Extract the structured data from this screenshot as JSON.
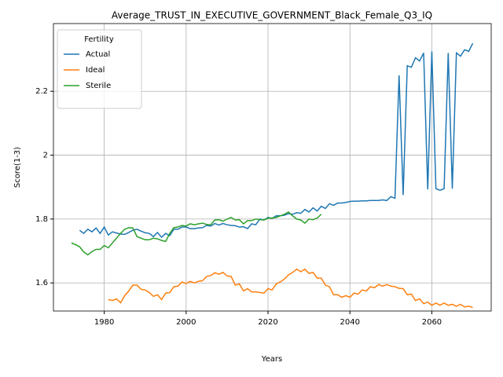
{
  "chart_data": {
    "type": "line",
    "title": "Average_TRUST_IN_EXECUTIVE_GOVERNMENT_Black_Female_Q3_IQ",
    "xlabel": "Years",
    "ylabel": "Score(1-3)",
    "legend_title": "Fertility",
    "legend_loc": "upper left",
    "grid": true,
    "x": [
      1972,
      1973,
      1974,
      1975,
      1976,
      1977,
      1978,
      1979,
      1980,
      1981,
      1982,
      1983,
      1984,
      1985,
      1986,
      1987,
      1988,
      1989,
      1990,
      1991,
      1992,
      1993,
      1994,
      1995,
      1996,
      1997,
      1998,
      1999,
      2000,
      2001,
      2002,
      2003,
      2004,
      2005,
      2006,
      2007,
      2008,
      2009,
      2010,
      2011,
      2012,
      2013,
      2014,
      2015,
      2016,
      2017,
      2018,
      2019,
      2020,
      2021,
      2022,
      2023,
      2024,
      2025,
      2026,
      2027,
      2028,
      2029,
      2030,
      2031,
      2032,
      2033,
      2034,
      2035,
      2036,
      2037,
      2038,
      2039,
      2040,
      2041,
      2042,
      2043,
      2044,
      2045,
      2046,
      2047,
      2048,
      2049,
      2050,
      2051,
      2052,
      2053,
      2054,
      2055,
      2056,
      2057,
      2058,
      2059,
      2060,
      2061,
      2062,
      2063,
      2064,
      2065,
      2066,
      2067,
      2068,
      2069,
      2070
    ],
    "series": [
      {
        "name": "Actual",
        "color": "#1f77b4",
        "values": [
          null,
          null,
          1.765,
          1.755,
          1.768,
          1.76,
          1.772,
          1.755,
          1.775,
          1.75,
          1.76,
          1.756,
          1.753,
          1.752,
          1.758,
          1.765,
          1.768,
          1.762,
          1.757,
          1.755,
          1.745,
          1.758,
          1.743,
          1.755,
          1.748,
          1.768,
          1.768,
          1.775,
          1.775,
          1.77,
          1.77,
          1.772,
          1.773,
          1.78,
          1.778,
          1.786,
          1.781,
          1.786,
          1.782,
          1.78,
          1.779,
          1.775,
          1.776,
          1.77,
          1.785,
          1.782,
          1.8,
          1.797,
          1.805,
          1.802,
          1.81,
          1.81,
          1.812,
          1.817,
          1.815,
          1.82,
          1.818,
          1.83,
          1.822,
          1.835,
          1.825,
          1.84,
          1.833,
          1.848,
          1.843,
          1.85,
          1.85,
          1.852,
          1.855,
          1.856,
          1.856,
          1.857,
          1.857,
          1.858,
          1.858,
          1.858,
          1.86,
          1.858,
          1.87,
          1.865,
          2.25,
          1.875,
          2.28,
          2.275,
          2.305,
          2.295,
          2.32,
          1.893,
          2.325,
          1.895,
          1.89,
          1.895,
          2.32,
          1.895,
          2.32,
          2.31,
          2.33,
          2.325,
          2.35
        ]
      },
      {
        "name": "Ideal",
        "color": "#ff7f0e",
        "values": [
          null,
          null,
          null,
          null,
          null,
          null,
          null,
          null,
          null,
          1.548,
          1.545,
          1.55,
          1.538,
          1.56,
          1.575,
          1.593,
          1.593,
          1.58,
          1.578,
          1.57,
          1.558,
          1.563,
          1.548,
          1.568,
          1.57,
          1.588,
          1.59,
          1.603,
          1.598,
          1.605,
          1.6,
          1.605,
          1.607,
          1.62,
          1.623,
          1.632,
          1.627,
          1.633,
          1.622,
          1.62,
          1.593,
          1.597,
          1.575,
          1.582,
          1.572,
          1.572,
          1.57,
          1.568,
          1.582,
          1.578,
          1.597,
          1.603,
          1.612,
          1.625,
          1.633,
          1.643,
          1.635,
          1.643,
          1.63,
          1.633,
          1.615,
          1.615,
          1.593,
          1.588,
          1.563,
          1.563,
          1.555,
          1.56,
          1.555,
          1.568,
          1.565,
          1.578,
          1.575,
          1.588,
          1.585,
          1.595,
          1.59,
          1.595,
          1.59,
          1.588,
          1.583,
          1.582,
          1.563,
          1.565,
          1.545,
          1.55,
          1.535,
          1.54,
          1.53,
          1.537,
          1.53,
          1.537,
          1.53,
          1.533,
          1.527,
          1.533,
          1.525,
          1.527,
          1.523
        ]
      },
      {
        "name": "Sterile",
        "color": "#2ca02c",
        "values": [
          1.725,
          1.72,
          1.713,
          1.697,
          1.688,
          1.698,
          1.705,
          1.705,
          1.717,
          1.71,
          1.725,
          1.74,
          1.755,
          1.768,
          1.773,
          1.772,
          1.745,
          1.74,
          1.735,
          1.735,
          1.74,
          1.738,
          1.733,
          1.73,
          1.755,
          1.773,
          1.775,
          1.78,
          1.778,
          1.785,
          1.782,
          1.785,
          1.787,
          1.783,
          1.782,
          1.797,
          1.798,
          1.793,
          1.8,
          1.805,
          1.797,
          1.798,
          1.785,
          1.795,
          1.795,
          1.8,
          1.798,
          1.797,
          1.803,
          1.803,
          1.805,
          1.81,
          1.815,
          1.822,
          1.81,
          1.8,
          1.797,
          1.787,
          1.8,
          1.798,
          1.803,
          1.815,
          null,
          null,
          null,
          null,
          null,
          null,
          null,
          null,
          null,
          null,
          null,
          null,
          null,
          null,
          null,
          null,
          null,
          null,
          null,
          null,
          null,
          null,
          null,
          null,
          null,
          null,
          null,
          null,
          null,
          null,
          null,
          null,
          null,
          null,
          null,
          null,
          null
        ]
      }
    ],
    "xlim": [
      1967.6,
      2074.5
    ],
    "xticks": [
      1980,
      2000,
      2020,
      2040,
      2060
    ],
    "ylim": [
      1.512,
      2.412
    ],
    "yticks": [
      1.6,
      1.8,
      2.0,
      2.2
    ]
  }
}
